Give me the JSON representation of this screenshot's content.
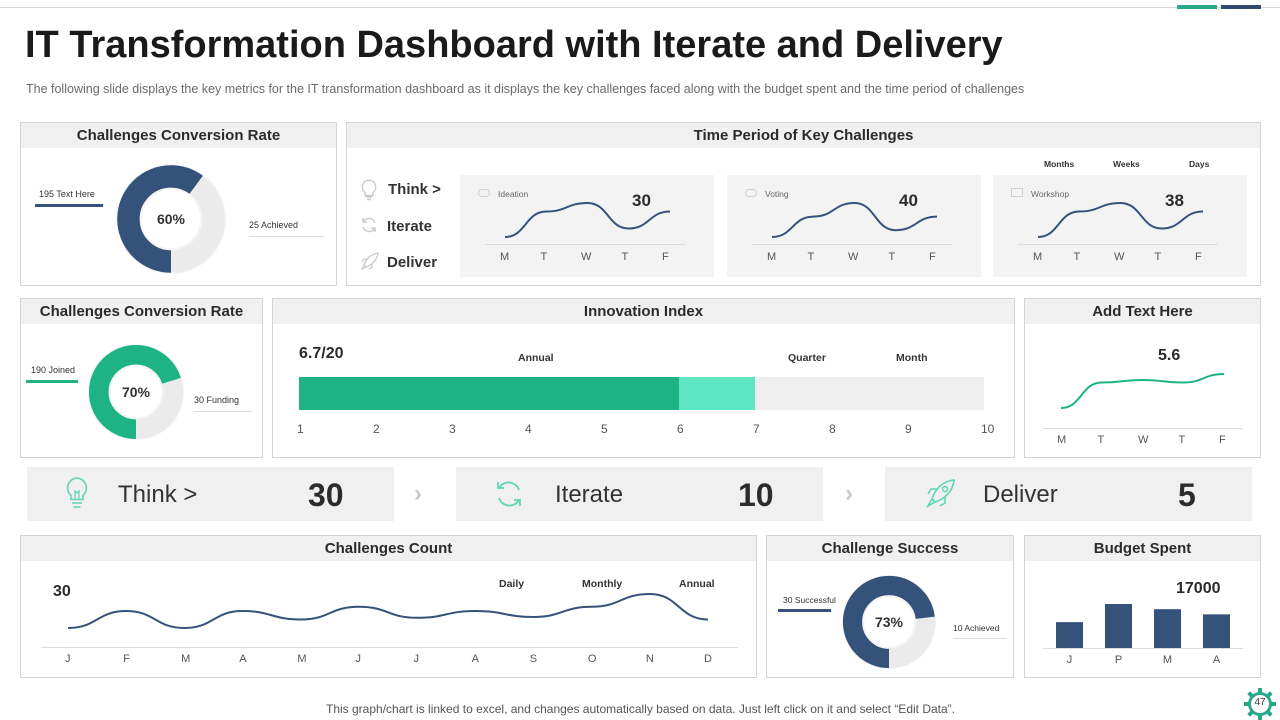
{
  "header": {
    "title": "IT Transformation Dashboard with Iterate and Delivery",
    "subtitle": "The following slide displays the key metrics for the IT transformation  dashboard as it displays the key challenges faced along with the budget spent and the time period of challenges"
  },
  "colors": {
    "navy": "#35527a",
    "teal": "#1db385",
    "light_teal": "#5ee6c2",
    "grey": "#efefef"
  },
  "conversion1": {
    "title": "Challenges Conversion Rate",
    "percent": "60%",
    "left_label": "195 Text Here",
    "right_label": "25 Achieved",
    "value": 0.6
  },
  "conversion2": {
    "title": "Challenges Conversion Rate",
    "percent": "70%",
    "left_label": "190 Joined",
    "right_label": "30 Funding",
    "value": 0.7
  },
  "time_period": {
    "title": "Time Period of Key Challenges",
    "steps": [
      {
        "label": "Think >",
        "icon": "lightbulb-icon"
      },
      {
        "label": "Iterate",
        "icon": "refresh-icon"
      },
      {
        "label": "Deliver",
        "icon": "rocket-icon"
      }
    ],
    "col_heads": [
      "Months",
      "Weeks",
      "Days"
    ],
    "cards": [
      {
        "name": "Ideation",
        "value": "30",
        "days": [
          "M",
          "T",
          "W",
          "T",
          "F"
        ],
        "series": [
          3,
          6,
          7,
          4,
          6
        ]
      },
      {
        "name": "Voting",
        "value": "40",
        "days": [
          "M",
          "T",
          "W",
          "T",
          "F"
        ],
        "series": [
          2,
          5,
          7,
          3,
          5
        ]
      },
      {
        "name": "Workshop",
        "value": "38",
        "days": [
          "M",
          "T",
          "W",
          "T",
          "F"
        ],
        "series": [
          2,
          5,
          6,
          3,
          5
        ]
      }
    ]
  },
  "innovation": {
    "title": "Innovation Index",
    "score": "6.7/20",
    "labels": [
      "Annual",
      "Quarter",
      "Month"
    ],
    "ticks": [
      "1",
      "2",
      "3",
      "4",
      "5",
      "6",
      "7",
      "8",
      "9",
      "10"
    ],
    "annual_end": 6,
    "quarter_end": 7
  },
  "add_text": {
    "title": "Add Text Here",
    "value": "5.6",
    "days": [
      "M",
      "T",
      "W",
      "T",
      "F"
    ],
    "series": [
      2,
      5,
      5.3,
      5,
      6
    ]
  },
  "tiles": [
    {
      "label": "Think >",
      "value": "30",
      "icon": "lightbulb-icon"
    },
    {
      "label": "Iterate",
      "value": "10",
      "icon": "refresh-icon"
    },
    {
      "label": "Deliver",
      "value": "5",
      "icon": "rocket-icon"
    }
  ],
  "challenges_count": {
    "title": "Challenges Count",
    "value": "30",
    "labels": [
      "Daily",
      "Monthly",
      "Annual"
    ],
    "months": [
      "J",
      "F",
      "M",
      "A",
      "M",
      "J",
      "J",
      "A",
      "S",
      "O",
      "N",
      "D"
    ],
    "series": [
      4,
      6,
      4,
      6,
      5,
      6.5,
      5.2,
      6,
      5.3,
      6.5,
      8,
      5
    ]
  },
  "challenge_success": {
    "title": "Challenge Success",
    "percent": "73%",
    "left_label": "30 Successful",
    "right_label": "10 Achieved",
    "value": 0.73
  },
  "budget": {
    "title": "Budget Spent",
    "value": "17000",
    "categories": [
      "J",
      "P",
      "M",
      "A"
    ],
    "values": [
      50,
      85,
      75,
      65
    ]
  },
  "footer": {
    "note": "This graph/chart is linked to excel,  and changes automatically based on data. Just left click on it and select “Edit Data”.",
    "page": "47"
  }
}
